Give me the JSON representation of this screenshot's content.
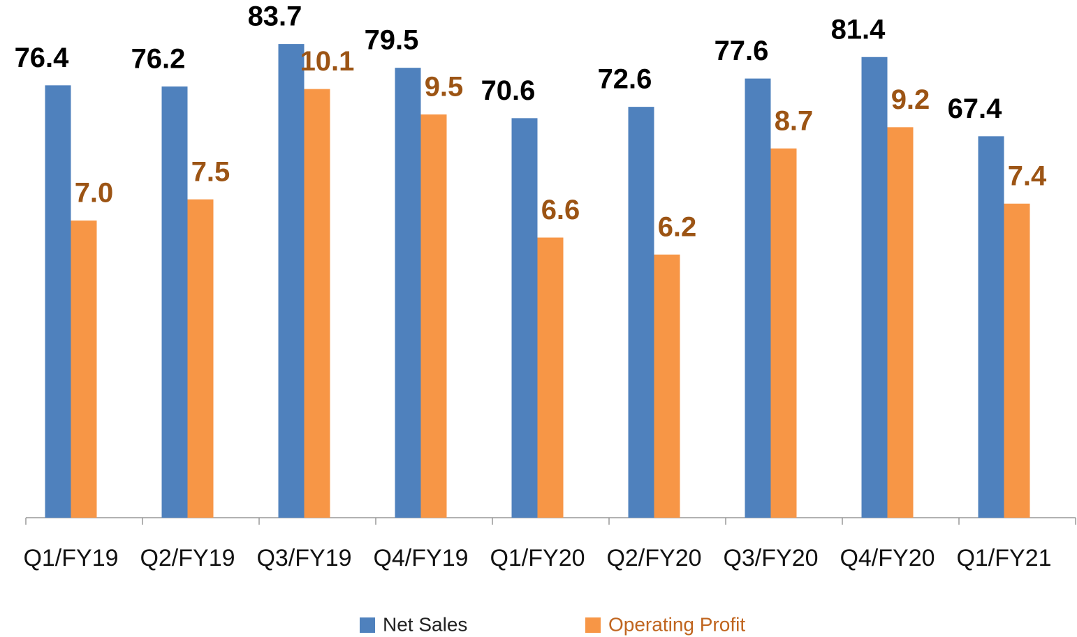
{
  "chart_data": {
    "type": "bar",
    "categories": [
      "Q1/FY19",
      "Q2/FY19",
      "Q3/FY19",
      "Q4/FY19",
      "Q1/FY20",
      "Q2/FY20",
      "Q3/FY20",
      "Q4/FY20",
      "Q1/FY21"
    ],
    "series": [
      {
        "name": "Net Sales",
        "color": "#4f81bd",
        "values": [
          76.4,
          76.2,
          83.7,
          79.5,
          70.6,
          72.6,
          77.6,
          81.4,
          67.4
        ]
      },
      {
        "name": "Operating Profit",
        "color": "#f79646",
        "axis": "y2",
        "values": [
          7.0,
          7.5,
          10.1,
          9.5,
          6.6,
          6.2,
          8.7,
          9.2,
          7.4
        ],
        "value_labels": [
          "7.0",
          "7.5",
          "10.1",
          "9.5",
          "6.6",
          "6.2",
          "8.7",
          "9.2",
          "7.4"
        ]
      }
    ],
    "ylim": [
      0,
      90
    ],
    "y2lim": [
      0,
      12
    ],
    "legend": "bottom"
  }
}
